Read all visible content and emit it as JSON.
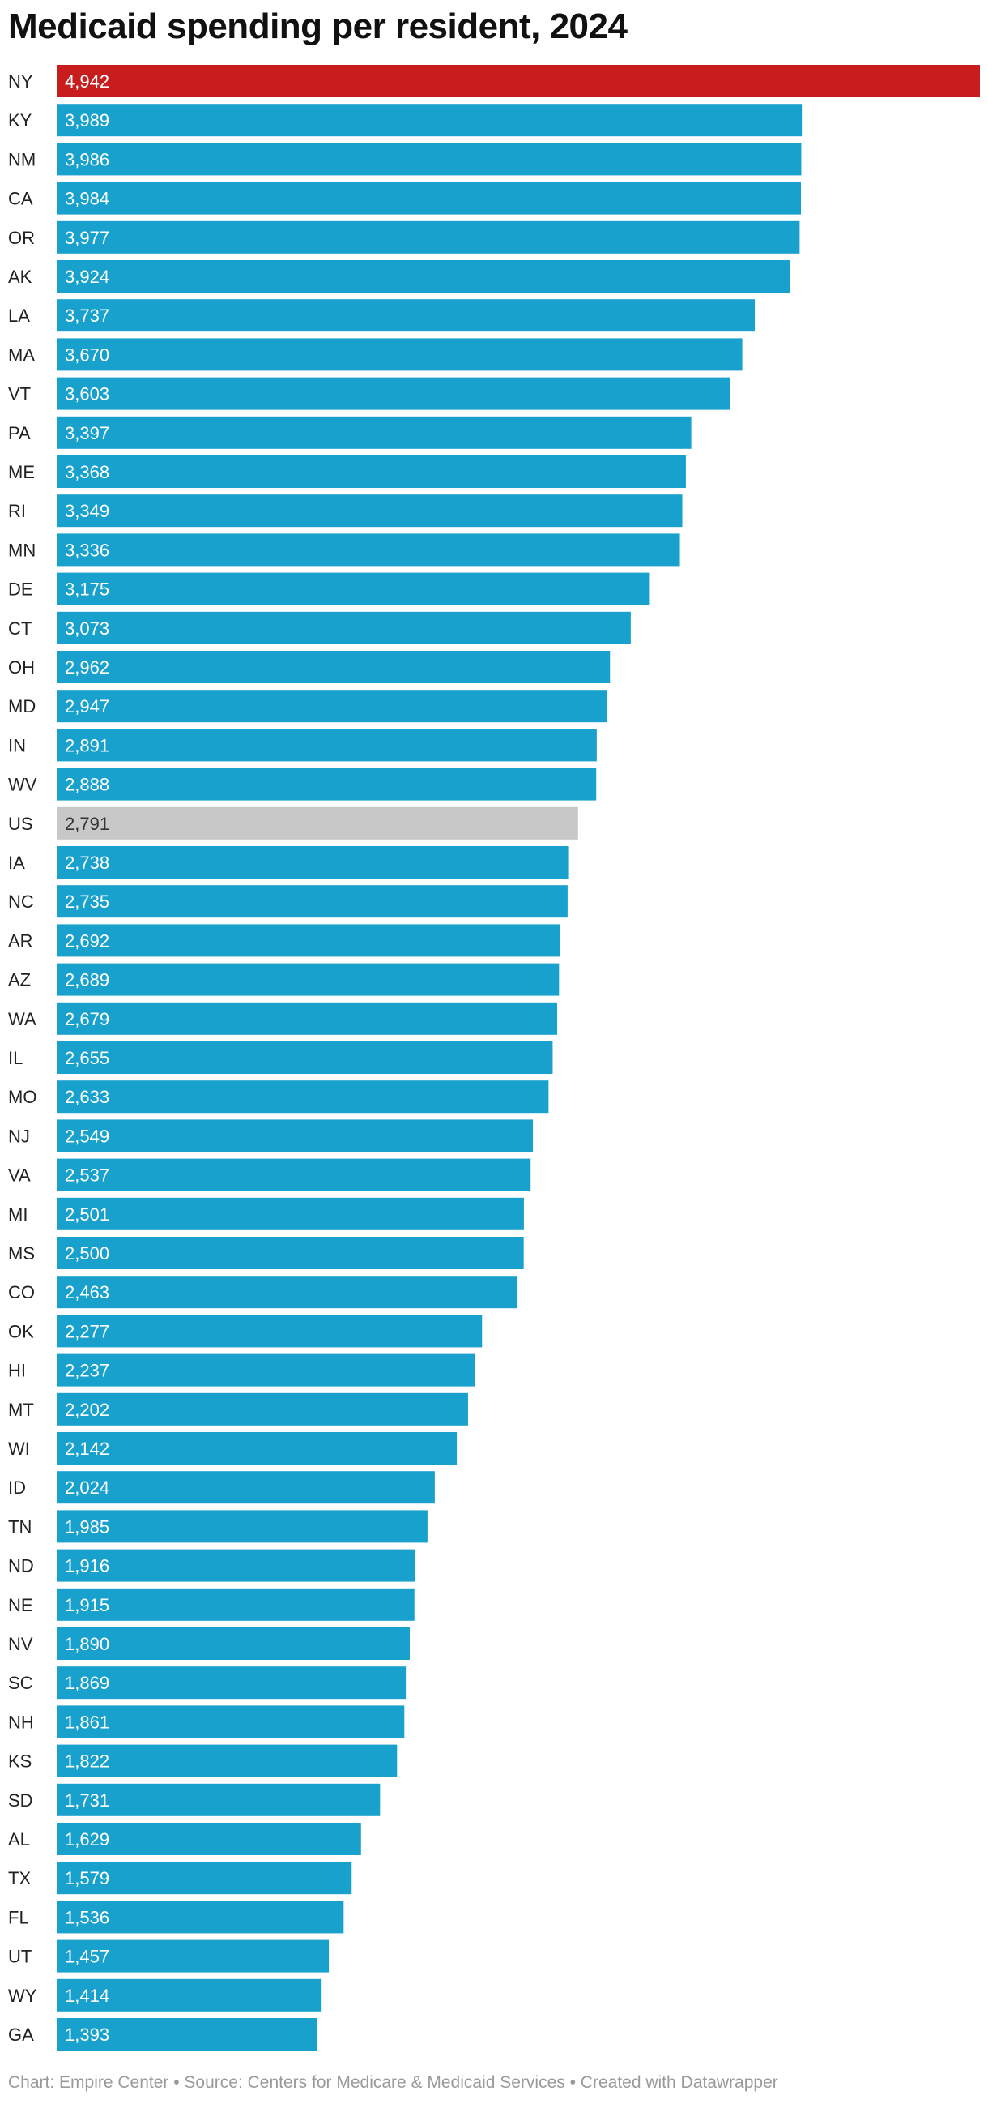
{
  "chart_data": {
    "type": "bar",
    "orientation": "horizontal",
    "title": "Medicaid spending per resident, 2024",
    "categories": [
      "NY",
      "KY",
      "NM",
      "CA",
      "OR",
      "AK",
      "LA",
      "MA",
      "VT",
      "PA",
      "ME",
      "RI",
      "MN",
      "DE",
      "CT",
      "OH",
      "MD",
      "IN",
      "WV",
      "US",
      "IA",
      "NC",
      "AR",
      "AZ",
      "WA",
      "IL",
      "MO",
      "NJ",
      "VA",
      "MI",
      "MS",
      "CO",
      "OK",
      "HI",
      "MT",
      "WI",
      "ID",
      "TN",
      "ND",
      "NE",
      "NV",
      "SC",
      "NH",
      "KS",
      "SD",
      "AL",
      "TX",
      "FL",
      "UT",
      "WY",
      "GA"
    ],
    "values": [
      4942,
      3989,
      3986,
      3984,
      3977,
      3924,
      3737,
      3670,
      3603,
      3397,
      3368,
      3349,
      3336,
      3175,
      3073,
      2962,
      2947,
      2891,
      2888,
      2791,
      2738,
      2735,
      2692,
      2689,
      2679,
      2655,
      2633,
      2549,
      2537,
      2501,
      2500,
      2463,
      2277,
      2237,
      2202,
      2142,
      2024,
      1985,
      1916,
      1915,
      1890,
      1869,
      1861,
      1822,
      1731,
      1629,
      1579,
      1536,
      1457,
      1414,
      1393
    ],
    "value_labels": [
      "4,942",
      "3,989",
      "3,986",
      "3,984",
      "3,977",
      "3,924",
      "3,737",
      "3,670",
      "3,603",
      "3,397",
      "3,368",
      "3,349",
      "3,336",
      "3,175",
      "3,073",
      "2,962",
      "2,947",
      "2,891",
      "2,888",
      "2,791",
      "2,738",
      "2,735",
      "2,692",
      "2,689",
      "2,679",
      "2,655",
      "2,633",
      "2,549",
      "2,537",
      "2,501",
      "2,500",
      "2,463",
      "2,277",
      "2,237",
      "2,202",
      "2,142",
      "2,024",
      "1,985",
      "1,916",
      "1,915",
      "1,890",
      "1,869",
      "1,861",
      "1,822",
      "1,731",
      "1,629",
      "1,579",
      "1,536",
      "1,457",
      "1,414",
      "1,393"
    ],
    "xlim": [
      0,
      4942
    ],
    "grid": false,
    "colors": {
      "default": "#18a1cd",
      "highlight": "#c71e1d",
      "average": "#c8c8c8",
      "label_light": "#ffffff",
      "label_dark": "#333333"
    },
    "highlight_category": "NY",
    "average_category": "US"
  },
  "footer": "Chart: Empire Center • Source: Centers for Medicare & Medicaid Services • Created with Datawrapper"
}
